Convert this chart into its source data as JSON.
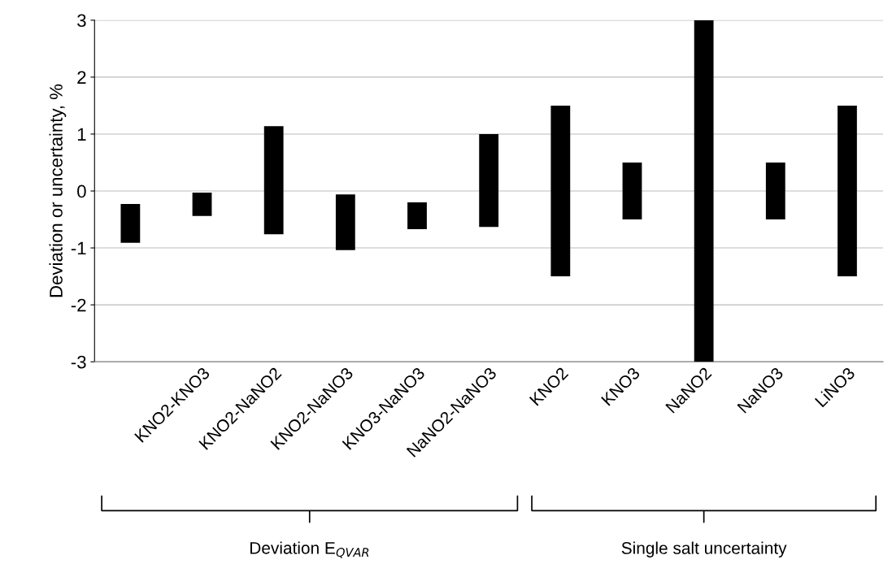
{
  "chart_data": {
    "type": "bar",
    "ylabel": "Deviation or uncertainty, %",
    "categories": [
      null,
      "KNO2-KNO3",
      "KNO2-NaNO2",
      "KNO2-NaNO3",
      "KNO3-NaNO3",
      "NaNO2-NaNO3",
      "KNO2",
      "KNO3",
      "NaNO2",
      "NaNO3",
      "LiNO3"
    ],
    "base": [
      -0.91,
      -0.44,
      -0.76,
      -1.04,
      -0.67,
      -0.63,
      -1.5,
      -0.5,
      -3,
      -0.5,
      -1.5
    ],
    "values": [
      0.68,
      0.41,
      1.9,
      0.98,
      0.47,
      1.63,
      3,
      1,
      6,
      1,
      3
    ],
    "color": "#000000",
    "ylim": [
      -3,
      3
    ],
    "yticks": [
      -3,
      -2,
      -1,
      0,
      1,
      2,
      3
    ],
    "grid": "y",
    "annotations": [
      "Deviation E$_{QVAR}$",
      "Single salt uncertainty"
    ]
  }
}
